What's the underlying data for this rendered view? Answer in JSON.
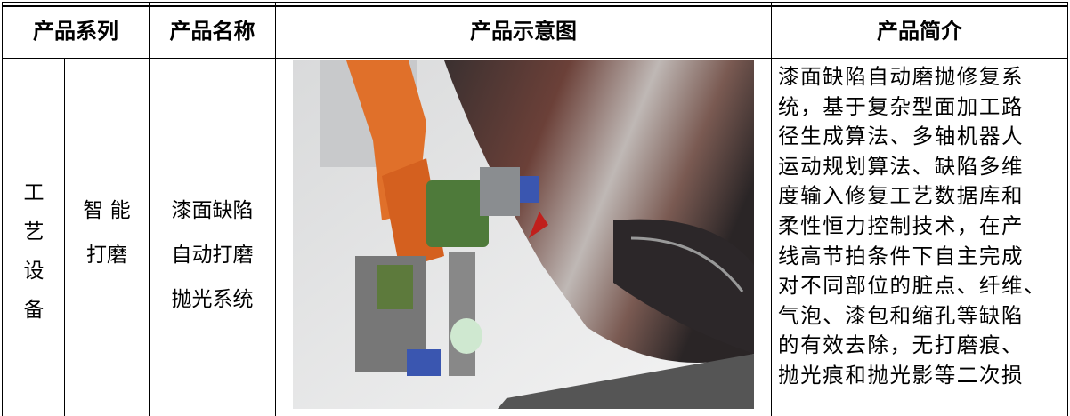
{
  "header": {
    "columns": [
      "产品系列",
      "产品名称",
      "产品示意图",
      "产品简介"
    ]
  },
  "row": {
    "category": "工艺设备",
    "subcategory_lines": [
      "智 能",
      "打磨"
    ],
    "name_lines": [
      "漆面缺陷",
      "自动打磨",
      "抛光系统"
    ],
    "description_lines": [
      "漆面缺陷自动磨抛修复系",
      "统，基于复杂型面加工路",
      "径生成算法、多轴机器人",
      "运动规划算法、缺陷多维",
      "度输入修复工艺数据库和",
      "柔性恒力控制技术，在产",
      "线高节拍条件下自主完成",
      "对不同部位的脏点、纤维、",
      "气泡、漆包和缩孔等缺陷",
      "的有效去除，无打磨痕、",
      "抛光痕和抛光影等二次损"
    ]
  }
}
